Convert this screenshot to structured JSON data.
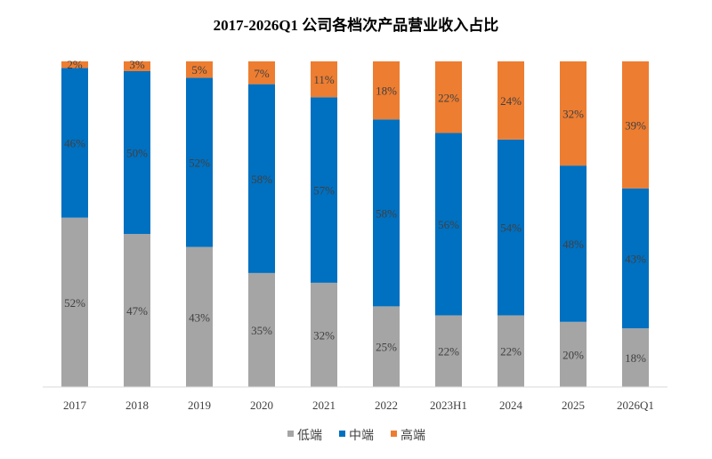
{
  "chart_data": {
    "type": "bar",
    "stacked": true,
    "title": "2017-2026Q1 公司各档次产品营业收入占比",
    "categories": [
      "2017",
      "2018",
      "2019",
      "2020",
      "2021",
      "2022",
      "2023H1",
      "2024",
      "2025",
      "2026Q1"
    ],
    "series": [
      {
        "name": "低端",
        "color": "#a5a5a5",
        "values": [
          52,
          47,
          43,
          35,
          32,
          25,
          22,
          22,
          20,
          18
        ]
      },
      {
        "name": "中端",
        "color": "#0070c0",
        "values": [
          46,
          50,
          52,
          58,
          57,
          58,
          56,
          54,
          48,
          43
        ]
      },
      {
        "name": "高端",
        "color": "#ed7d31",
        "values": [
          2,
          3,
          5,
          7,
          11,
          18,
          22,
          24,
          32,
          39
        ]
      }
    ],
    "unit": "%",
    "legend": "bottom",
    "grid": false
  }
}
